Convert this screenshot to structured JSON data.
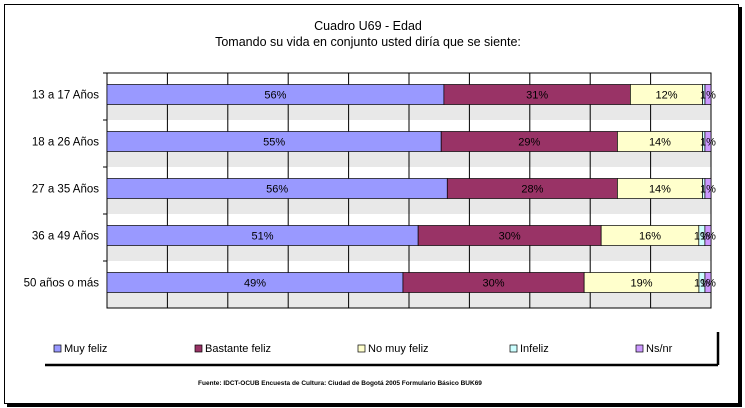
{
  "chart_data": {
    "type": "bar",
    "orientation": "horizontal",
    "stacked": "100%",
    "title": "Cuadro U69 - Edad",
    "subtitle": "Tomando su vida en conjunto usted diría que se siente:",
    "categories": [
      "13 a 17 Años",
      "18 a 26 Años",
      "27 a 35 Años",
      "36 a 49 Años",
      "50 años o más"
    ],
    "series": [
      {
        "name": "Muy feliz",
        "color": "#9999ff",
        "values": [
          56,
          55,
          56,
          51,
          49
        ],
        "labels": [
          "56%",
          "55%",
          "56%",
          "51%",
          "49%"
        ]
      },
      {
        "name": "Bastante feliz",
        "color": "#993366",
        "values": [
          31,
          29,
          28,
          30,
          30
        ],
        "labels": [
          "31%",
          "29%",
          "28%",
          "30%",
          "30%"
        ]
      },
      {
        "name": "No muy feliz",
        "color": "#ffffcc",
        "values": [
          12,
          14,
          14,
          16,
          19
        ],
        "labels": [
          "12%",
          "14%",
          "14%",
          "16%",
          "19%"
        ]
      },
      {
        "name": "Infeliz",
        "color": "#ccffff",
        "values": [
          0.4,
          0.4,
          0.4,
          1,
          1
        ],
        "labels": [
          "",
          "",
          "",
          "1%",
          "1%"
        ]
      },
      {
        "name": "Ns/nr",
        "color": "#cc99ff",
        "values": [
          1,
          1,
          1,
          1,
          1
        ],
        "labels": [
          "1%",
          "1%",
          "1%",
          "1%",
          "1%"
        ]
      }
    ],
    "xlim": [
      0,
      100
    ],
    "grid": true,
    "legend_position": "bottom",
    "source_note": "Fuente: IDCT-OCUB Encuesta de Cultura: Ciudad de Bogotá 2005 Formulario Básico BUK69"
  }
}
